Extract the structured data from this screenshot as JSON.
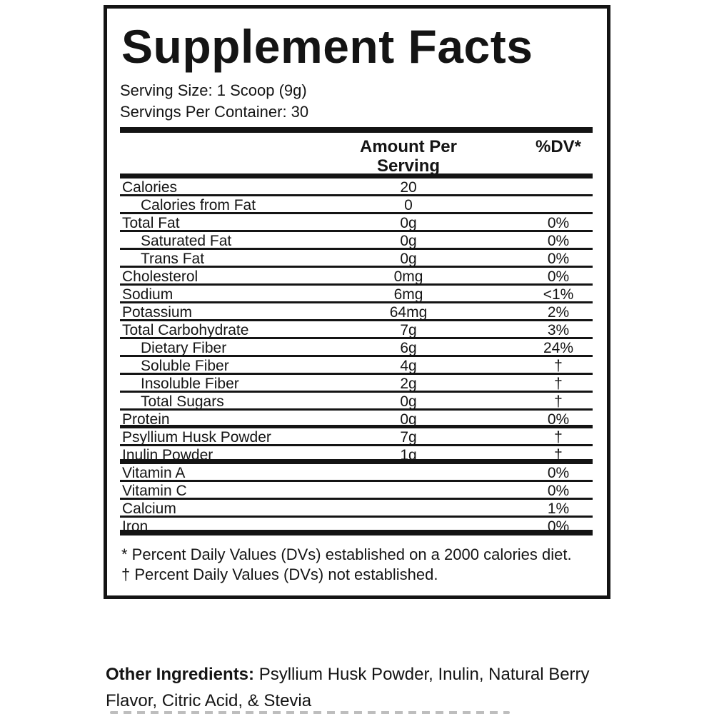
{
  "label": {
    "title": "Supplement Facts",
    "serving": {
      "size": "Serving Size: 1 Scoop (9g)",
      "container": "Servings Per Container: 30"
    },
    "columns": {
      "amount_line1": "Amount Per",
      "amount_line2": "Serving",
      "dv": "%DV*"
    },
    "rows": [
      {
        "label": "Calories",
        "amount": "20",
        "dv": "",
        "indent": false,
        "sep": "thin"
      },
      {
        "label": "Calories from Fat",
        "amount": "0",
        "dv": "",
        "indent": true,
        "sep": "thin"
      },
      {
        "label": "Total Fat",
        "amount": "0g",
        "dv": "0%",
        "indent": false,
        "sep": "thin"
      },
      {
        "label": "Saturated Fat",
        "amount": "0g",
        "dv": "0%",
        "indent": true,
        "sep": "thin"
      },
      {
        "label": "Trans Fat",
        "amount": "0g",
        "dv": "0%",
        "indent": true,
        "sep": "thin"
      },
      {
        "label": "Cholesterol",
        "amount": "0mg",
        "dv": "0%",
        "indent": false,
        "sep": "thin"
      },
      {
        "label": "Sodium",
        "amount": "6mg",
        "dv": "<1%",
        "indent": false,
        "sep": "thin"
      },
      {
        "label": "Potassium",
        "amount": "64mg",
        "dv": "2%",
        "indent": false,
        "sep": "thin"
      },
      {
        "label": "Total Carbohydrate",
        "amount": "7g",
        "dv": "3%",
        "indent": false,
        "sep": "thin"
      },
      {
        "label": "Dietary Fiber",
        "amount": "6g",
        "dv": "24%",
        "indent": true,
        "sep": "thin"
      },
      {
        "label": "Soluble Fiber",
        "amount": "4g",
        "dv": "†",
        "indent": true,
        "sep": "thin"
      },
      {
        "label": "Insoluble Fiber",
        "amount": "2g",
        "dv": "†",
        "indent": true,
        "sep": "thin"
      },
      {
        "label": "Total Sugars",
        "amount": "0g",
        "dv": "†",
        "indent": true,
        "sep": "thin"
      },
      {
        "label": "Protein",
        "amount": "0g",
        "dv": "0%",
        "indent": false,
        "sep": "medium"
      },
      {
        "label": "Psyllium Husk Powder",
        "amount": "7g",
        "dv": "†",
        "indent": false,
        "sep": "thin"
      },
      {
        "label": "Inulin Powder",
        "amount": "1g",
        "dv": "†",
        "indent": false,
        "sep": "thick"
      },
      {
        "label": "Vitamin A",
        "amount": "",
        "dv": "0%",
        "indent": false,
        "sep": "thin"
      },
      {
        "label": "Vitamin C",
        "amount": "",
        "dv": "0%",
        "indent": false,
        "sep": "thin"
      },
      {
        "label": "Calcium",
        "amount": "",
        "dv": "1%",
        "indent": false,
        "sep": "thin"
      },
      {
        "label": "Iron",
        "amount": "",
        "dv": "0%",
        "indent": false,
        "sep": "heavy"
      }
    ],
    "footnotes": [
      "* Percent Daily Values (DVs) established on a 2000 calories diet.",
      "† Percent Daily Values (DVs) not established."
    ]
  },
  "other_ingredients": {
    "prefix": "Other Ingredients:",
    "line1_rest": " Psyllium Husk Powder, Inulin, Natural Berry",
    "line2": "Flavor, Citric Acid, & Stevia"
  },
  "colors": {
    "text": "#141414",
    "background": "#ffffff"
  }
}
